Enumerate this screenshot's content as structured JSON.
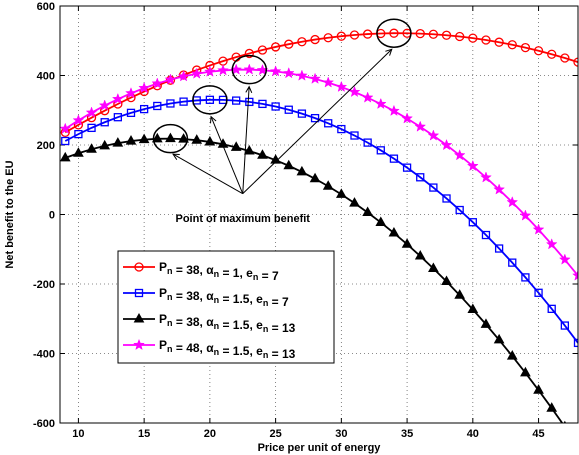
{
  "chart_data": {
    "type": "line",
    "title": "",
    "xlabel": "Price per unit of energy",
    "ylabel": "Net benefit to the EU",
    "xlim": [
      8.6,
      48
    ],
    "ylim": [
      -600,
      600
    ],
    "xticks": [
      10,
      15,
      20,
      25,
      30,
      35,
      40,
      45
    ],
    "yticks": [
      -600,
      -400,
      -200,
      0,
      200,
      400,
      600
    ],
    "grid": true,
    "legend_position": "lower-left",
    "annotation": "Point of maximum benefit",
    "x": [
      9,
      10,
      11,
      12,
      13,
      14,
      15,
      16,
      17,
      18,
      19,
      20,
      21,
      22,
      23,
      24,
      25,
      26,
      27,
      28,
      29,
      30,
      31,
      32,
      33,
      34,
      35,
      36,
      37,
      38,
      39,
      40,
      41,
      42,
      43,
      44,
      45,
      46,
      47,
      48
    ],
    "series": [
      {
        "legend": {
          "P": "P",
          "Psub": "n",
          "Pval": " = 38, ",
          "A": "α",
          "Asub": "n",
          "Aval": " = 1, ",
          "E": "e",
          "Esub": "n",
          "Eval": " = 7"
        },
        "color": "#ff0000",
        "marker": "circle",
        "values": [
          236.3,
          257.9,
          278.7,
          298.8,
          318.0,
          336.4,
          353.9,
          370.6,
          386.5,
          401.5,
          415.7,
          428.9,
          441.4,
          452.9,
          463.5,
          473.3,
          482.2,
          490.1,
          497.2,
          503.4,
          508.7,
          513.1,
          516.6,
          519.2,
          520.9,
          521.7,
          521.6,
          520.6,
          518.7,
          515.9,
          512.2,
          507.6,
          502.1,
          495.8,
          488.5,
          480.3,
          471.2,
          461.2,
          450.3,
          438.5
        ]
      },
      {
        "legend": {
          "P": "P",
          "Psub": "n",
          "Pval": " = 38, ",
          "A": "α",
          "Asub": "n",
          "Aval": " = 1.5, ",
          "E": "e",
          "Esub": "n",
          "Eval": " = 7"
        },
        "color": "#0000ff",
        "marker": "square",
        "values": [
          211.5,
          231.3,
          249.3,
          265.5,
          280.0,
          292.5,
          303.3,
          312.3,
          319.5,
          324.8,
          328.3,
          330.0,
          329.8,
          327.8,
          324.0,
          318.3,
          310.8,
          301.5,
          290.3,
          277.3,
          262.5,
          245.8,
          227.3,
          206.9,
          184.7,
          160.7,
          134.8,
          107.1,
          77.5,
          46.1,
          12.9,
          -22.2,
          -59.1,
          -97.9,
          -138.5,
          -181.0,
          -225.3,
          -271.5,
          -319.6,
          -369.5
        ]
      },
      {
        "legend": {
          "P": "P",
          "Psub": "n",
          "Pval": " = 38, ",
          "A": "α",
          "Asub": "n",
          "Aval": " = 1.5, ",
          "E": "e",
          "Esub": "n",
          "Eval": " = 13"
        },
        "color": "#000000",
        "marker": "triangle",
        "values": [
          163.0,
          176.3,
          187.8,
          197.5,
          205.3,
          211.3,
          215.5,
          217.8,
          218.3,
          217.0,
          213.8,
          208.8,
          202.0,
          193.3,
          182.8,
          170.5,
          156.3,
          140.3,
          122.5,
          102.8,
          81.3,
          58.0,
          32.8,
          5.8,
          -22.9,
          -53.4,
          -85.6,
          -119.6,
          -155.4,
          -192.9,
          -232.2,
          -273.3,
          -316.2,
          -360.9,
          -407.4,
          -455.6,
          -505.6,
          -557.4,
          -610.9,
          -666.3
        ]
      },
      {
        "legend": {
          "P": "P",
          "Psub": "n",
          "Pval": " = 48, ",
          "A": "α",
          "Asub": "n",
          "Aval": " = 1.5, ",
          "E": "e",
          "Esub": "n",
          "Eval": " = 13"
        },
        "color": "#ff00ff",
        "marker": "star",
        "values": [
          246.6,
          270.8,
          293.0,
          313.5,
          332.0,
          348.8,
          363.7,
          376.8,
          388.0,
          397.4,
          405.0,
          410.7,
          414.6,
          416.7,
          416.9,
          415.3,
          411.8,
          406.5,
          399.4,
          390.4,
          379.6,
          367.0,
          352.5,
          336.2,
          318.0,
          298.0,
          276.2,
          252.5,
          227.0,
          199.6,
          170.4,
          139.4,
          106.5,
          71.7,
          35.2,
          -3.3,
          -43.6,
          -85.9,
          -130.0,
          -176.0
        ]
      }
    ]
  }
}
